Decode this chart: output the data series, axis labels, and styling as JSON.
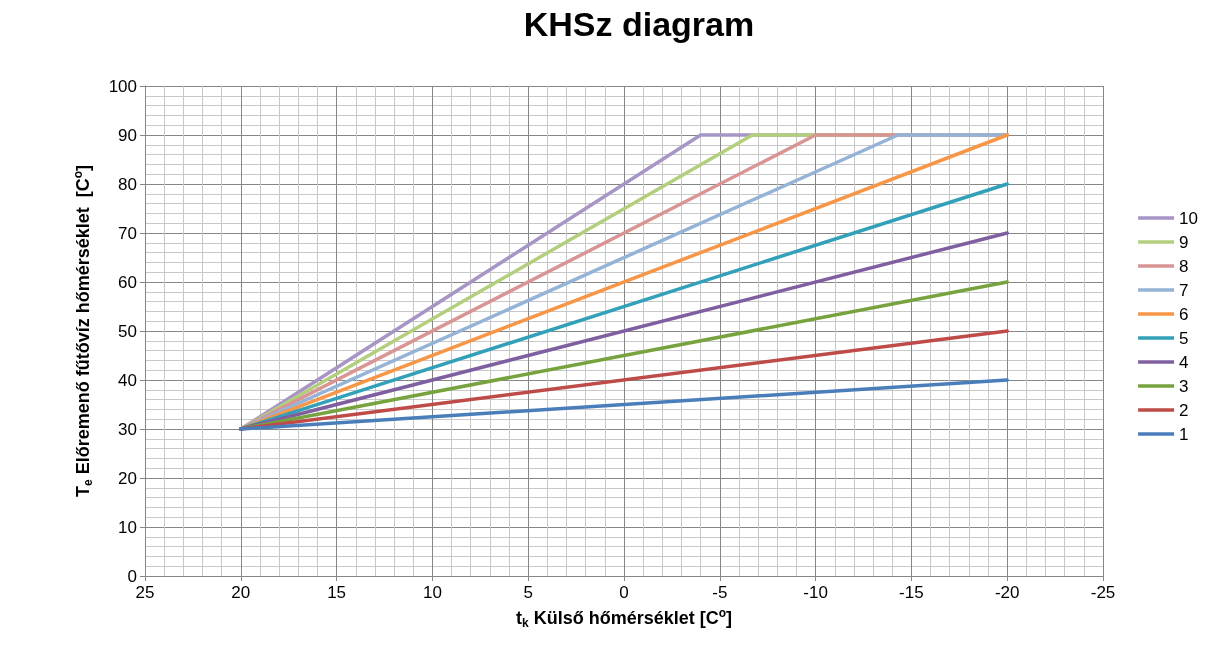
{
  "chart_data": {
    "type": "line",
    "title": "KHSz diagram",
    "xlabel": "t$_{k}$ Külső hőmérséklet [C$^{o}$]",
    "ylabel": "T$_{e}$ Előremenő fűtővíz hőmérséklet  [C$^{o}$]",
    "xlim": [
      25,
      -25
    ],
    "xticks": [
      25,
      20,
      15,
      10,
      5,
      0,
      -5,
      -10,
      -15,
      -20,
      -25
    ],
    "ylim": [
      0,
      100
    ],
    "yticks": [
      0,
      10,
      20,
      30,
      40,
      50,
      60,
      70,
      80,
      90,
      100
    ],
    "grid": true,
    "legend": "right",
    "marker": "none",
    "line_style": "solid",
    "series": [
      {
        "name": "10",
        "color": "#a795c5",
        "x": [
          20,
          -4,
          -20
        ],
        "values": [
          30,
          90,
          90
        ]
      },
      {
        "name": "9",
        "color": "#b3cf7e",
        "x": [
          20,
          -6.7,
          -20
        ],
        "values": [
          30,
          90,
          90
        ]
      },
      {
        "name": "8",
        "color": "#d99594",
        "x": [
          20,
          -10,
          -20
        ],
        "values": [
          30,
          90,
          90
        ]
      },
      {
        "name": "7",
        "color": "#95b3d7",
        "x": [
          20,
          -14.3,
          -20
        ],
        "values": [
          30,
          90,
          90
        ]
      },
      {
        "name": "6",
        "color": "#f79646",
        "x": [
          20,
          -20
        ],
        "values": [
          30,
          90
        ]
      },
      {
        "name": "5",
        "color": "#31a0b8",
        "x": [
          20,
          -20
        ],
        "values": [
          30,
          80
        ]
      },
      {
        "name": "4",
        "color": "#7f5f9f",
        "x": [
          20,
          -20
        ],
        "values": [
          30,
          70
        ]
      },
      {
        "name": "3",
        "color": "#77a33e",
        "x": [
          20,
          -20
        ],
        "values": [
          30,
          60
        ]
      },
      {
        "name": "2",
        "color": "#be4b48",
        "x": [
          20,
          -20
        ],
        "values": [
          30,
          50
        ]
      },
      {
        "name": "1",
        "color": "#4a7ebb",
        "x": [
          20,
          -20
        ],
        "values": [
          30,
          40
        ]
      }
    ]
  }
}
